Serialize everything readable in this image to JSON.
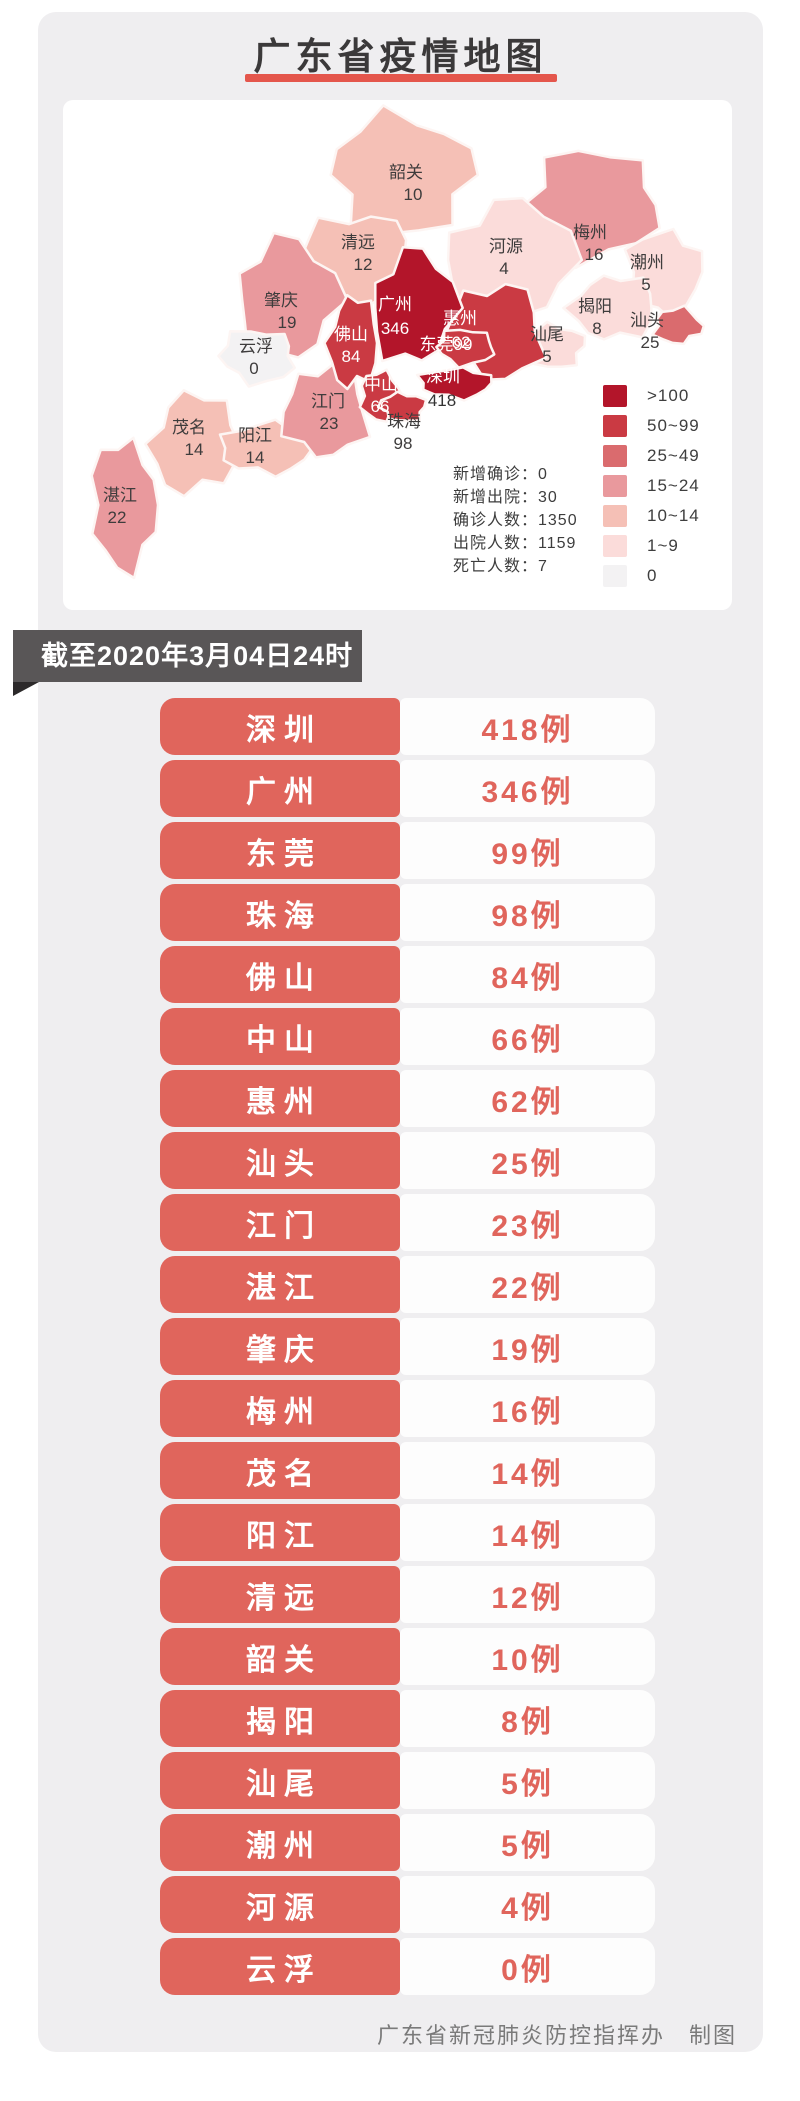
{
  "title": "广东省疫情地图",
  "map": {
    "stats": [
      "新增确诊：0",
      "新增出院：30",
      "确诊人数：1350",
      "出院人数：1159",
      "死亡人数：7"
    ],
    "legend": [
      {
        "label": ">100",
        "color": "#b3152a"
      },
      {
        "label": "50~99",
        "color": "#ca3a43"
      },
      {
        "label": "25~49",
        "color": "#da6b6e"
      },
      {
        "label": "15~24",
        "color": "#e9999d"
      },
      {
        "label": "10~14",
        "color": "#f5c0b6"
      },
      {
        "label": "1~9",
        "color": "#fbdcda"
      },
      {
        "label": "0",
        "color": "#f3f2f3"
      }
    ],
    "regions": [
      {
        "id": "meizhou",
        "name": "梅州",
        "value": "16",
        "color": "#e9999d",
        "name_color": "#3e3c3c",
        "value_color": "#3e3c3c"
      },
      {
        "id": "shaoguan",
        "name": "韶关",
        "value": "10",
        "color": "#f5c0b6",
        "name_color": "#3e3c3c",
        "value_color": "#3e3c3c"
      },
      {
        "id": "qingyuan",
        "name": "清远",
        "value": "12",
        "color": "#f5c0b6",
        "name_color": "#3e3c3c",
        "value_color": "#3e3c3c"
      },
      {
        "id": "heyuan",
        "name": "河源",
        "value": "4",
        "color": "#fbdcda",
        "name_color": "#3e3c3c",
        "value_color": "#3e3c3c"
      },
      {
        "id": "zhaoqing",
        "name": "肇庆",
        "value": "19",
        "color": "#e9999d",
        "name_color": "#3e3c3c",
        "value_color": "#3e3c3c"
      },
      {
        "id": "chaozhou",
        "name": "潮州",
        "value": "5",
        "color": "#fbdcda",
        "name_color": "#3e3c3c",
        "value_color": "#3e3c3c"
      },
      {
        "id": "yunfu",
        "name": "云浮",
        "value": "0",
        "color": "#f3f2f3",
        "name_color": "#3e3c3c",
        "value_color": "#3e3c3c"
      },
      {
        "id": "jieyang",
        "name": "揭阳",
        "value": "8",
        "color": "#fbdcda",
        "name_color": "#3e3c3c",
        "value_color": "#3e3c3c"
      },
      {
        "id": "shanwei",
        "name": "汕尾",
        "value": "5",
        "color": "#fbdcda",
        "name_color": "#3e3c3c",
        "value_color": "#3e3c3c"
      },
      {
        "id": "maoming",
        "name": "茂名",
        "value": "14",
        "color": "#f5c0b6",
        "name_color": "#3e3c3c",
        "value_color": "#3e3c3c"
      },
      {
        "id": "yangjiang",
        "name": "阳江",
        "value": "14",
        "color": "#f5c0b6",
        "name_color": "#3e3c3c",
        "value_color": "#3e3c3c"
      },
      {
        "id": "zhanjiang",
        "name": "湛江",
        "value": "22",
        "color": "#e9999d",
        "name_color": "#3e3c3c",
        "value_color": "#3e3c3c"
      },
      {
        "id": "jiangmen",
        "name": "江门",
        "value": "23",
        "color": "#e9999d",
        "name_color": "#3e3c3c",
        "value_color": "#3e3c3c"
      },
      {
        "id": "huizhou",
        "name": "惠州",
        "value": "62",
        "color": "#ca3a43",
        "name_color": "#ffffff",
        "value_color": "#ffffff"
      },
      {
        "id": "guangzhou",
        "name": "广州",
        "value": "346",
        "color": "#b3152a",
        "name_color": "#ffffff",
        "value_color": "#ffffff"
      },
      {
        "id": "foshan",
        "name": "佛山",
        "value": "84",
        "color": "#ca3a43",
        "name_color": "#ffffff",
        "value_color": "#ffffff"
      },
      {
        "id": "dongguan",
        "name": "东莞",
        "value": "99",
        "color": "#ca3a43",
        "name_color": "#ffffff",
        "value_color": "#ffffff",
        "oneline": true
      },
      {
        "id": "zhongshan",
        "name": "中山",
        "value": "66",
        "color": "#ca3a43",
        "name_color": "#ffffff",
        "value_color": "#ffffff"
      },
      {
        "id": "zhuhai",
        "name": "珠海",
        "value": "98",
        "color": "#ca3a43",
        "name_color": "#3e3c3c",
        "value_color": "#3e3c3c"
      },
      {
        "id": "shenzhen",
        "name": "深圳",
        "value": "418",
        "color": "#b3152a",
        "name_color": "#ffffff",
        "value_color": "#333333"
      },
      {
        "id": "shantou",
        "name": "汕头",
        "value": "25",
        "color": "#da6b6e",
        "name_color": "#3e3c3c",
        "value_color": "#3e3c3c"
      }
    ]
  },
  "date_banner": "截至2020年3月04日24时",
  "table": [
    {
      "city": "深圳",
      "cases": "418例"
    },
    {
      "city": "广州",
      "cases": "346例"
    },
    {
      "city": "东莞",
      "cases": "99例"
    },
    {
      "city": "珠海",
      "cases": "98例"
    },
    {
      "city": "佛山",
      "cases": "84例"
    },
    {
      "city": "中山",
      "cases": "66例"
    },
    {
      "city": "惠州",
      "cases": "62例"
    },
    {
      "city": "汕头",
      "cases": "25例"
    },
    {
      "city": "江门",
      "cases": "23例"
    },
    {
      "city": "湛江",
      "cases": "22例"
    },
    {
      "city": "肇庆",
      "cases": "19例"
    },
    {
      "city": "梅州",
      "cases": "16例"
    },
    {
      "city": "茂名",
      "cases": "14例"
    },
    {
      "city": "阳江",
      "cases": "14例"
    },
    {
      "city": "清远",
      "cases": "12例"
    },
    {
      "city": "韶关",
      "cases": "10例"
    },
    {
      "city": "揭阳",
      "cases": "8例"
    },
    {
      "city": "汕尾",
      "cases": "5例"
    },
    {
      "city": "潮州",
      "cases": "5例"
    },
    {
      "city": "河源",
      "cases": "4例"
    },
    {
      "city": "云浮",
      "cases": "0例"
    }
  ],
  "footer": "广东省新冠肺炎防控指挥办　制图",
  "chart_data": {
    "type": "heatmap",
    "subtype": "choropleth-map",
    "title": "广东省疫情地图",
    "as_of": "截至2020年3月04日24时",
    "categories": [
      "深圳",
      "广州",
      "东莞",
      "珠海",
      "佛山",
      "中山",
      "惠州",
      "汕头",
      "江门",
      "湛江",
      "肇庆",
      "梅州",
      "茂名",
      "阳江",
      "清远",
      "韶关",
      "揭阳",
      "汕尾",
      "潮州",
      "河源",
      "云浮"
    ],
    "values": [
      418,
      346,
      99,
      98,
      84,
      66,
      62,
      25,
      23,
      22,
      19,
      16,
      14,
      14,
      12,
      10,
      8,
      5,
      5,
      4,
      0
    ],
    "legend_buckets": [
      ">100",
      "50~99",
      "25~49",
      "15~24",
      "10~14",
      "1~9",
      "0"
    ],
    "legend_colors": [
      "#b3152a",
      "#ca3a43",
      "#da6b6e",
      "#e9999d",
      "#f5c0b6",
      "#fbdcda",
      "#f3f2f3"
    ],
    "legend_position": "right",
    "annotations": [
      "新增确诊：0",
      "新增出院：30",
      "确诊人数：1350",
      "出院人数：1159",
      "死亡人数：7"
    ]
  }
}
